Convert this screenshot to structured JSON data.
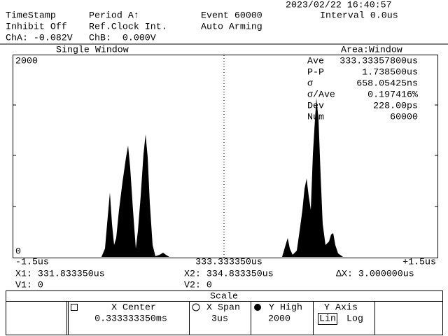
{
  "status": {
    "datetime": "2023/02/22 16:40:57",
    "timestamp": "TimeStamp",
    "period": "Period A↑",
    "event": "Event 60000",
    "interval": "Interval 0.0us",
    "inhibit": "Inhibit Off",
    "ref_clock": "Ref.Clock Int.",
    "arming": "Auto Arming",
    "cha": "ChA: -0.082V",
    "chb": "ChB:  0.000V"
  },
  "window": {
    "mode": "Single Window",
    "area": "Area:Window",
    "y_top": "2000",
    "y_bottom": "0",
    "x_left": "-1.5us",
    "x_center": "333.333350us",
    "x_right": "+1.5us"
  },
  "stats": [
    {
      "label": "Ave",
      "value": "333.33357800us"
    },
    {
      "label": "P-P",
      "value": "1.738500us"
    },
    {
      "label": "σ",
      "value": "658.05425ns"
    },
    {
      "label": "σ/Ave",
      "value": "0.197416%"
    },
    {
      "label": "Dev",
      "value": "228.00ps"
    },
    {
      "label": "Num",
      "value": "60000"
    }
  ],
  "cursors": {
    "x1": "X1: 331.833350us",
    "x2": "X2: 334.833350us",
    "dx": "ΔX: 3.000000us",
    "v1": "V1: 0",
    "v2": "V2: 0"
  },
  "softkeys": {
    "title": "Scale",
    "keys": [
      {
        "label": "X Center",
        "value": "0.333333350ms"
      },
      {
        "label": "X Span",
        "value": "3us"
      },
      {
        "label": "Y High",
        "value": "2000"
      },
      {
        "label": "Y Axis",
        "options": [
          "Lin",
          "Log"
        ]
      }
    ]
  }
}
